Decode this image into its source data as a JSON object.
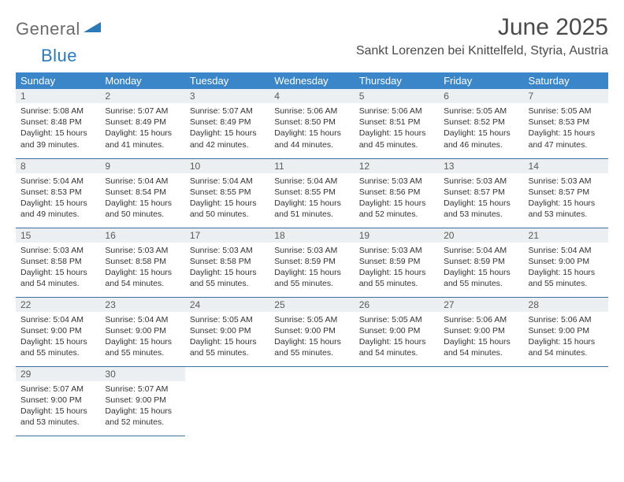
{
  "brand": {
    "general": "General",
    "blue": "Blue"
  },
  "title": "June 2025",
  "location": "Sankt Lorenzen bei Knittelfeld, Styria, Austria",
  "colors": {
    "header_bg": "#3a86c8",
    "header_text": "#ffffff",
    "daynum_bg": "#eceff1",
    "cell_border": "#3a6f9e",
    "logo_gray": "#6b6b6b",
    "logo_blue": "#2a7ab9"
  },
  "daynames": [
    "Sunday",
    "Monday",
    "Tuesday",
    "Wednesday",
    "Thursday",
    "Friday",
    "Saturday"
  ],
  "weeks": [
    [
      {
        "n": "1",
        "sr": "Sunrise: 5:08 AM",
        "ss": "Sunset: 8:48 PM",
        "d1": "Daylight: 15 hours",
        "d2": "and 39 minutes."
      },
      {
        "n": "2",
        "sr": "Sunrise: 5:07 AM",
        "ss": "Sunset: 8:49 PM",
        "d1": "Daylight: 15 hours",
        "d2": "and 41 minutes."
      },
      {
        "n": "3",
        "sr": "Sunrise: 5:07 AM",
        "ss": "Sunset: 8:49 PM",
        "d1": "Daylight: 15 hours",
        "d2": "and 42 minutes."
      },
      {
        "n": "4",
        "sr": "Sunrise: 5:06 AM",
        "ss": "Sunset: 8:50 PM",
        "d1": "Daylight: 15 hours",
        "d2": "and 44 minutes."
      },
      {
        "n": "5",
        "sr": "Sunrise: 5:06 AM",
        "ss": "Sunset: 8:51 PM",
        "d1": "Daylight: 15 hours",
        "d2": "and 45 minutes."
      },
      {
        "n": "6",
        "sr": "Sunrise: 5:05 AM",
        "ss": "Sunset: 8:52 PM",
        "d1": "Daylight: 15 hours",
        "d2": "and 46 minutes."
      },
      {
        "n": "7",
        "sr": "Sunrise: 5:05 AM",
        "ss": "Sunset: 8:53 PM",
        "d1": "Daylight: 15 hours",
        "d2": "and 47 minutes."
      }
    ],
    [
      {
        "n": "8",
        "sr": "Sunrise: 5:04 AM",
        "ss": "Sunset: 8:53 PM",
        "d1": "Daylight: 15 hours",
        "d2": "and 49 minutes."
      },
      {
        "n": "9",
        "sr": "Sunrise: 5:04 AM",
        "ss": "Sunset: 8:54 PM",
        "d1": "Daylight: 15 hours",
        "d2": "and 50 minutes."
      },
      {
        "n": "10",
        "sr": "Sunrise: 5:04 AM",
        "ss": "Sunset: 8:55 PM",
        "d1": "Daylight: 15 hours",
        "d2": "and 50 minutes."
      },
      {
        "n": "11",
        "sr": "Sunrise: 5:04 AM",
        "ss": "Sunset: 8:55 PM",
        "d1": "Daylight: 15 hours",
        "d2": "and 51 minutes."
      },
      {
        "n": "12",
        "sr": "Sunrise: 5:03 AM",
        "ss": "Sunset: 8:56 PM",
        "d1": "Daylight: 15 hours",
        "d2": "and 52 minutes."
      },
      {
        "n": "13",
        "sr": "Sunrise: 5:03 AM",
        "ss": "Sunset: 8:57 PM",
        "d1": "Daylight: 15 hours",
        "d2": "and 53 minutes."
      },
      {
        "n": "14",
        "sr": "Sunrise: 5:03 AM",
        "ss": "Sunset: 8:57 PM",
        "d1": "Daylight: 15 hours",
        "d2": "and 53 minutes."
      }
    ],
    [
      {
        "n": "15",
        "sr": "Sunrise: 5:03 AM",
        "ss": "Sunset: 8:58 PM",
        "d1": "Daylight: 15 hours",
        "d2": "and 54 minutes."
      },
      {
        "n": "16",
        "sr": "Sunrise: 5:03 AM",
        "ss": "Sunset: 8:58 PM",
        "d1": "Daylight: 15 hours",
        "d2": "and 54 minutes."
      },
      {
        "n": "17",
        "sr": "Sunrise: 5:03 AM",
        "ss": "Sunset: 8:58 PM",
        "d1": "Daylight: 15 hours",
        "d2": "and 55 minutes."
      },
      {
        "n": "18",
        "sr": "Sunrise: 5:03 AM",
        "ss": "Sunset: 8:59 PM",
        "d1": "Daylight: 15 hours",
        "d2": "and 55 minutes."
      },
      {
        "n": "19",
        "sr": "Sunrise: 5:03 AM",
        "ss": "Sunset: 8:59 PM",
        "d1": "Daylight: 15 hours",
        "d2": "and 55 minutes."
      },
      {
        "n": "20",
        "sr": "Sunrise: 5:04 AM",
        "ss": "Sunset: 8:59 PM",
        "d1": "Daylight: 15 hours",
        "d2": "and 55 minutes."
      },
      {
        "n": "21",
        "sr": "Sunrise: 5:04 AM",
        "ss": "Sunset: 9:00 PM",
        "d1": "Daylight: 15 hours",
        "d2": "and 55 minutes."
      }
    ],
    [
      {
        "n": "22",
        "sr": "Sunrise: 5:04 AM",
        "ss": "Sunset: 9:00 PM",
        "d1": "Daylight: 15 hours",
        "d2": "and 55 minutes."
      },
      {
        "n": "23",
        "sr": "Sunrise: 5:04 AM",
        "ss": "Sunset: 9:00 PM",
        "d1": "Daylight: 15 hours",
        "d2": "and 55 minutes."
      },
      {
        "n": "24",
        "sr": "Sunrise: 5:05 AM",
        "ss": "Sunset: 9:00 PM",
        "d1": "Daylight: 15 hours",
        "d2": "and 55 minutes."
      },
      {
        "n": "25",
        "sr": "Sunrise: 5:05 AM",
        "ss": "Sunset: 9:00 PM",
        "d1": "Daylight: 15 hours",
        "d2": "and 55 minutes."
      },
      {
        "n": "26",
        "sr": "Sunrise: 5:05 AM",
        "ss": "Sunset: 9:00 PM",
        "d1": "Daylight: 15 hours",
        "d2": "and 54 minutes."
      },
      {
        "n": "27",
        "sr": "Sunrise: 5:06 AM",
        "ss": "Sunset: 9:00 PM",
        "d1": "Daylight: 15 hours",
        "d2": "and 54 minutes."
      },
      {
        "n": "28",
        "sr": "Sunrise: 5:06 AM",
        "ss": "Sunset: 9:00 PM",
        "d1": "Daylight: 15 hours",
        "d2": "and 54 minutes."
      }
    ],
    [
      {
        "n": "29",
        "sr": "Sunrise: 5:07 AM",
        "ss": "Sunset: 9:00 PM",
        "d1": "Daylight: 15 hours",
        "d2": "and 53 minutes."
      },
      {
        "n": "30",
        "sr": "Sunrise: 5:07 AM",
        "ss": "Sunset: 9:00 PM",
        "d1": "Daylight: 15 hours",
        "d2": "and 52 minutes."
      },
      null,
      null,
      null,
      null,
      null
    ]
  ]
}
